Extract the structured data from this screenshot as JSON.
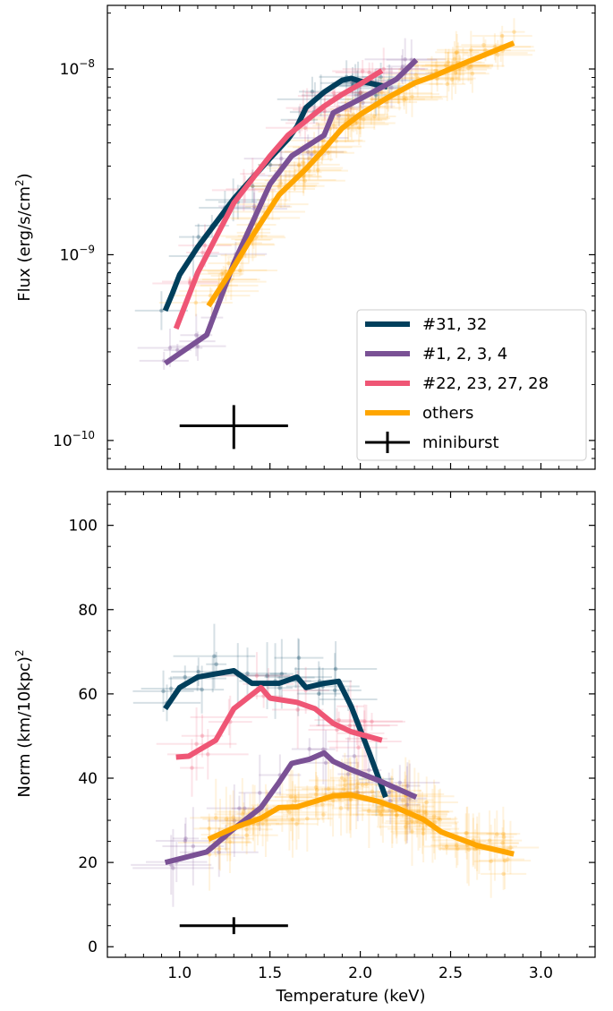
{
  "chart_data": [
    {
      "type": "line",
      "panel": "top",
      "yscale": "log",
      "xlim": [
        0.6,
        3.3
      ],
      "ylim": [
        7e-11,
        2.2e-08
      ],
      "ylabel": "Flux (erg/s/cm",
      "ylabel_sup": "2",
      "ylabel_end": ")",
      "yticks": [
        {
          "value": 1e-10,
          "base": "10",
          "exp": "−10"
        },
        {
          "value": 1e-09,
          "base": "10",
          "exp": "−9"
        },
        {
          "value": 1e-08,
          "base": "10",
          "exp": "−8"
        }
      ],
      "legend_position": "lower-right",
      "series": [
        {
          "name": "#31, 32",
          "color": "#003f5c",
          "x": [
            0.92,
            0.96,
            1.0,
            1.1,
            1.3,
            1.5,
            1.6,
            1.65,
            1.7,
            1.8,
            1.9,
            1.95,
            2.0,
            2.1,
            2.15
          ],
          "y": [
            5e-10,
            6.2e-10,
            7.8e-10,
            1.1e-09,
            2e-09,
            3.3e-09,
            4.2e-09,
            4.9e-09,
            6.2e-09,
            7.5e-09,
            8.7e-09,
            8.9e-09,
            8.6e-09,
            8.2e-09,
            8e-09
          ]
        },
        {
          "name": "#1, 2, 3, 4",
          "color": "#7a5195",
          "x": [
            0.92,
            1.15,
            1.3,
            1.5,
            1.62,
            1.8,
            1.85,
            2.0,
            2.2,
            2.31
          ],
          "y": [
            2.6e-10,
            3.7e-10,
            9e-10,
            2.4e-09,
            3.4e-09,
            4.4e-09,
            5.8e-09,
            6.9e-09,
            8.8e-09,
            1.12e-08
          ]
        },
        {
          "name": "#22, 23, 27, 28",
          "color": "#ef5675",
          "x": [
            0.98,
            1.1,
            1.3,
            1.5,
            1.6,
            1.8,
            1.9,
            2.0,
            2.12
          ],
          "y": [
            4e-10,
            8e-10,
            1.9e-09,
            3.4e-09,
            4.4e-09,
            6.3e-09,
            7.3e-09,
            8.3e-09,
            9.8e-09
          ]
        },
        {
          "name": "others",
          "color": "#ffa600",
          "x": [
            1.16,
            1.3,
            1.4,
            1.55,
            1.7,
            1.8,
            1.9,
            2.0,
            2.15,
            2.3,
            2.4,
            2.55,
            2.85
          ],
          "y": [
            5.3e-10,
            8.6e-10,
            1.25e-09,
            2.1e-09,
            2.9e-09,
            3.7e-09,
            4.8e-09,
            5.7e-09,
            7e-09,
            8.4e-09,
            9.1e-09,
            1.05e-08,
            1.38e-08
          ]
        }
      ],
      "miniburst": {
        "label": "miniburst",
        "color": "#000000",
        "x": 1.3,
        "xerr": 0.3,
        "y": 1.2e-10,
        "ylow": 9e-11,
        "yhigh": 1.55e-10
      }
    },
    {
      "type": "line",
      "panel": "bottom",
      "yscale": "linear",
      "xlim": [
        0.6,
        3.3
      ],
      "ylim": [
        -2.5,
        108
      ],
      "xlabel": "Temperature (keV)",
      "ylabel": "Norm (km/10kpc)",
      "ylabel_sup": "2",
      "ylabel_end": "",
      "xticks": [
        1.0,
        1.5,
        2.0,
        2.5,
        3.0
      ],
      "xticklabels": [
        "1.0",
        "1.5",
        "2.0",
        "2.5",
        "3.0"
      ],
      "yticks": [
        0,
        20,
        40,
        60,
        80,
        100
      ],
      "series": [
        {
          "name": "#31, 32",
          "color": "#003f5c",
          "x": [
            0.92,
            1.0,
            1.1,
            1.3,
            1.4,
            1.55,
            1.65,
            1.7,
            1.8,
            1.88,
            1.95,
            2.05,
            2.14
          ],
          "y": [
            56.5,
            61.5,
            64,
            65.5,
            62.5,
            62.5,
            64,
            61.5,
            62.5,
            63,
            57,
            46,
            35.5
          ]
        },
        {
          "name": "#1, 2, 3, 4",
          "color": "#7a5195",
          "x": [
            0.92,
            1.15,
            1.3,
            1.45,
            1.55,
            1.62,
            1.72,
            1.8,
            1.85,
            1.95,
            2.1,
            2.31
          ],
          "y": [
            20,
            22.5,
            28,
            33,
            39,
            43.5,
            44.5,
            46,
            44,
            42,
            39.5,
            35.5
          ]
        },
        {
          "name": "#22, 23, 27, 28",
          "color": "#ef5675",
          "x": [
            0.98,
            1.05,
            1.1,
            1.2,
            1.3,
            1.45,
            1.5,
            1.65,
            1.75,
            1.85,
            1.95,
            2.12
          ],
          "y": [
            45,
            45.2,
            46.5,
            49,
            56.5,
            61.5,
            59,
            58,
            56.5,
            53,
            51,
            49
          ]
        },
        {
          "name": "others",
          "color": "#ffa600",
          "x": [
            1.16,
            1.3,
            1.45,
            1.55,
            1.65,
            1.75,
            1.85,
            1.95,
            2.1,
            2.2,
            2.35,
            2.45,
            2.65,
            2.85
          ],
          "y": [
            25.5,
            28.2,
            30.5,
            33,
            33.2,
            34.5,
            35.8,
            36,
            34.5,
            33,
            30.2,
            27.2,
            24,
            22
          ]
        }
      ],
      "miniburst": {
        "label": "miniburst",
        "color": "#000000",
        "x": 1.3,
        "xerr": 0.3,
        "y": 5,
        "ylow": 3,
        "yhigh": 7
      }
    }
  ]
}
